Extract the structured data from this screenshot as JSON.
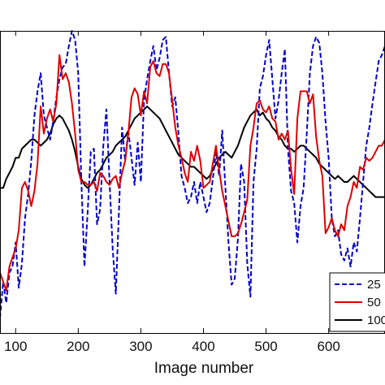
{
  "chart_data": {
    "type": "line",
    "title": "",
    "xlabel": "Image number",
    "ylabel": "",
    "xlim": [
      75,
      690
    ],
    "ylim": [
      0,
      1
    ],
    "x_ticks": [
      "100",
      "200",
      "300",
      "400",
      "500",
      "600"
    ],
    "grid": false,
    "legend_position": "bottom-right",
    "series": [
      {
        "name": "25",
        "color": "#0000cc",
        "dash": "dashed",
        "x": [
          75,
          80,
          85,
          90,
          95,
          100,
          105,
          110,
          115,
          120,
          125,
          130,
          135,
          140,
          145,
          150,
          155,
          160,
          165,
          170,
          175,
          180,
          185,
          190,
          195,
          200,
          205,
          210,
          215,
          220,
          225,
          230,
          235,
          240,
          245,
          250,
          255,
          260,
          265,
          270,
          275,
          280,
          285,
          290,
          295,
          300,
          305,
          310,
          315,
          320,
          325,
          330,
          335,
          340,
          345,
          350,
          355,
          360,
          365,
          370,
          375,
          380,
          385,
          390,
          395,
          400,
          405,
          410,
          415,
          420,
          425,
          430,
          435,
          440,
          445,
          450,
          455,
          460,
          465,
          470,
          475,
          480,
          485,
          490,
          495,
          500,
          505,
          510,
          515,
          520,
          525,
          530,
          535,
          540,
          545,
          550,
          555,
          560,
          565,
          570,
          575,
          580,
          585,
          590,
          595,
          600,
          605,
          610,
          615,
          620,
          625,
          630,
          635,
          640,
          645,
          650,
          655,
          660,
          665,
          670,
          675,
          680,
          685,
          690
        ],
        "values": [
          0.05,
          0.17,
          0.1,
          0.2,
          0.22,
          0.3,
          0.15,
          0.23,
          0.38,
          0.46,
          0.57,
          0.72,
          0.8,
          0.86,
          0.72,
          0.68,
          0.64,
          0.7,
          0.78,
          0.84,
          0.88,
          0.89,
          0.95,
          1.0,
          0.97,
          0.86,
          0.5,
          0.22,
          0.4,
          0.6,
          0.61,
          0.36,
          0.41,
          0.62,
          0.74,
          0.5,
          0.28,
          0.13,
          0.4,
          0.68,
          0.57,
          0.67,
          0.58,
          0.49,
          0.63,
          0.5,
          0.77,
          0.84,
          0.9,
          0.95,
          0.87,
          0.91,
          0.97,
          0.98,
          0.86,
          0.75,
          0.78,
          0.66,
          0.52,
          0.48,
          0.43,
          0.45,
          0.5,
          0.43,
          0.5,
          0.45,
          0.4,
          0.43,
          0.51,
          0.6,
          0.52,
          0.67,
          0.48,
          0.3,
          0.16,
          0.18,
          0.31,
          0.56,
          0.5,
          0.23,
          0.12,
          0.5,
          0.61,
          0.81,
          0.85,
          0.92,
          0.97,
          0.84,
          0.71,
          0.77,
          0.86,
          0.94,
          0.61,
          0.47,
          0.43,
          0.3,
          0.42,
          0.48,
          0.66,
          0.86,
          0.95,
          0.98,
          0.96,
          0.86,
          0.7,
          0.58,
          0.38,
          0.32,
          0.34,
          0.26,
          0.24,
          0.28,
          0.22,
          0.3,
          0.27,
          0.38,
          0.5,
          0.62,
          0.68,
          0.76,
          0.83,
          0.9,
          0.92,
          0.95
        ]
      },
      {
        "name": "50",
        "color": "#dd0000",
        "dash": "solid",
        "x": [
          75,
          80,
          85,
          90,
          95,
          100,
          105,
          110,
          115,
          120,
          125,
          130,
          135,
          140,
          145,
          150,
          155,
          160,
          165,
          170,
          175,
          180,
          185,
          190,
          195,
          200,
          205,
          210,
          215,
          220,
          225,
          230,
          235,
          240,
          245,
          250,
          255,
          260,
          265,
          270,
          275,
          280,
          285,
          290,
          295,
          300,
          305,
          310,
          315,
          320,
          325,
          330,
          335,
          340,
          345,
          350,
          355,
          360,
          365,
          370,
          375,
          380,
          385,
          390,
          395,
          400,
          405,
          410,
          415,
          420,
          425,
          430,
          435,
          440,
          445,
          450,
          455,
          460,
          465,
          470,
          475,
          480,
          485,
          490,
          495,
          500,
          505,
          510,
          515,
          520,
          525,
          530,
          535,
          540,
          545,
          550,
          555,
          560,
          565,
          570,
          575,
          580,
          585,
          590,
          595,
          600,
          605,
          610,
          615,
          620,
          625,
          630,
          635,
          640,
          645,
          650,
          655,
          660,
          665,
          670,
          675,
          680,
          685,
          690
        ],
        "values": [
          0.2,
          0.17,
          0.14,
          0.22,
          0.25,
          0.28,
          0.34,
          0.48,
          0.5,
          0.47,
          0.42,
          0.47,
          0.56,
          0.75,
          0.66,
          0.71,
          0.74,
          0.7,
          0.76,
          0.92,
          0.84,
          0.86,
          0.83,
          0.76,
          0.66,
          0.54,
          0.5,
          0.5,
          0.49,
          0.49,
          0.5,
          0.47,
          0.53,
          0.52,
          0.5,
          0.49,
          0.51,
          0.52,
          0.48,
          0.53,
          0.57,
          0.66,
          0.78,
          0.81,
          0.79,
          0.72,
          0.8,
          0.76,
          0.88,
          0.9,
          0.86,
          0.85,
          0.89,
          0.89,
          0.86,
          0.77,
          0.68,
          0.62,
          0.58,
          0.53,
          0.5,
          0.6,
          0.57,
          0.62,
          0.57,
          0.48,
          0.49,
          0.5,
          0.56,
          0.62,
          0.54,
          0.47,
          0.42,
          0.37,
          0.32,
          0.32,
          0.33,
          0.36,
          0.4,
          0.44,
          0.62,
          0.68,
          0.76,
          0.77,
          0.74,
          0.73,
          0.75,
          0.71,
          0.7,
          0.64,
          0.66,
          0.64,
          0.67,
          0.54,
          0.46,
          0.71,
          0.8,
          0.8,
          0.8,
          0.76,
          0.79,
          0.65,
          0.57,
          0.52,
          0.33,
          0.35,
          0.38,
          0.34,
          0.32,
          0.36,
          0.34,
          0.42,
          0.45,
          0.5,
          0.48,
          0.55,
          0.54,
          0.58,
          0.57,
          0.58,
          0.6,
          0.62,
          0.62,
          0.64
        ]
      },
      {
        "name": "100",
        "color": "#000000",
        "dash": "solid",
        "x": [
          75,
          80,
          85,
          90,
          95,
          100,
          105,
          110,
          115,
          120,
          125,
          130,
          135,
          140,
          145,
          150,
          155,
          160,
          165,
          170,
          175,
          180,
          185,
          190,
          195,
          200,
          205,
          210,
          215,
          220,
          225,
          230,
          235,
          240,
          245,
          250,
          255,
          260,
          265,
          270,
          275,
          280,
          285,
          290,
          295,
          300,
          305,
          310,
          315,
          320,
          325,
          330,
          335,
          340,
          345,
          350,
          355,
          360,
          365,
          370,
          375,
          380,
          385,
          390,
          395,
          400,
          405,
          410,
          415,
          420,
          425,
          430,
          435,
          440,
          445,
          450,
          455,
          460,
          465,
          470,
          475,
          480,
          485,
          490,
          495,
          500,
          505,
          510,
          515,
          520,
          525,
          530,
          535,
          540,
          545,
          550,
          555,
          560,
          565,
          570,
          575,
          580,
          585,
          590,
          595,
          600,
          605,
          610,
          615,
          620,
          625,
          630,
          635,
          640,
          645,
          650,
          655,
          660,
          665,
          670,
          675,
          680,
          685,
          690
        ],
        "values": [
          0.48,
          0.48,
          0.51,
          0.53,
          0.55,
          0.58,
          0.58,
          0.61,
          0.62,
          0.63,
          0.64,
          0.64,
          0.63,
          0.62,
          0.63,
          0.64,
          0.66,
          0.69,
          0.71,
          0.72,
          0.71,
          0.69,
          0.67,
          0.64,
          0.6,
          0.55,
          0.51,
          0.49,
          0.48,
          0.49,
          0.51,
          0.53,
          0.54,
          0.56,
          0.58,
          0.59,
          0.6,
          0.62,
          0.63,
          0.64,
          0.65,
          0.67,
          0.69,
          0.71,
          0.72,
          0.73,
          0.74,
          0.75,
          0.74,
          0.73,
          0.72,
          0.71,
          0.69,
          0.67,
          0.65,
          0.63,
          0.61,
          0.59,
          0.58,
          0.57,
          0.56,
          0.55,
          0.55,
          0.54,
          0.53,
          0.52,
          0.51,
          0.52,
          0.54,
          0.56,
          0.58,
          0.59,
          0.6,
          0.59,
          0.58,
          0.6,
          0.62,
          0.65,
          0.68,
          0.7,
          0.72,
          0.73,
          0.74,
          0.72,
          0.73,
          0.71,
          0.7,
          0.68,
          0.67,
          0.65,
          0.64,
          0.62,
          0.61,
          0.61,
          0.6,
          0.61,
          0.62,
          0.62,
          0.61,
          0.6,
          0.59,
          0.58,
          0.56,
          0.55,
          0.54,
          0.53,
          0.52,
          0.51,
          0.52,
          0.51,
          0.5,
          0.5,
          0.51,
          0.52,
          0.51,
          0.5,
          0.49,
          0.48,
          0.47,
          0.46,
          0.45,
          0.45,
          0.45,
          0.45
        ]
      }
    ]
  }
}
